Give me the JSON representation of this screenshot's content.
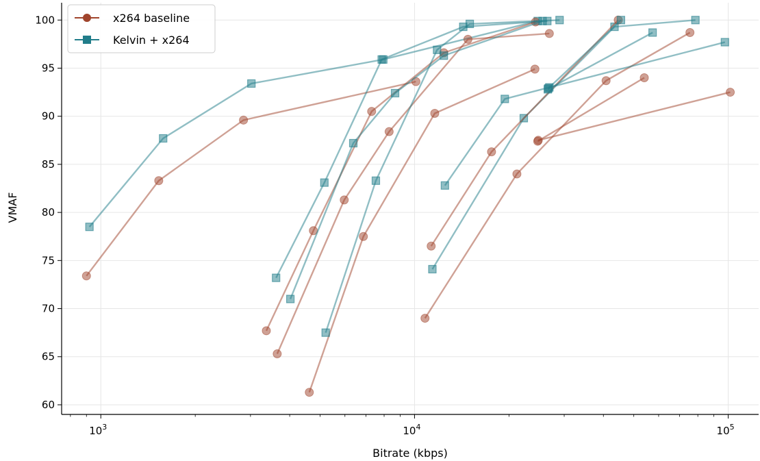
{
  "chart_data": {
    "type": "line",
    "xscale": "log",
    "xlabel": "Bitrate (kbps)",
    "ylabel": "VMAF",
    "xlim": [
      750,
      125000
    ],
    "ylim": [
      59,
      101.8
    ],
    "x_ticks": [
      {
        "value": 1000,
        "base": "10",
        "exp": "3"
      },
      {
        "value": 10000,
        "base": "10",
        "exp": "4"
      },
      {
        "value": 100000,
        "base": "10",
        "exp": "5"
      }
    ],
    "y_ticks": [
      60,
      65,
      70,
      75,
      80,
      85,
      90,
      95,
      100
    ],
    "grid": true,
    "legend": {
      "position": "top-left",
      "entries": [
        {
          "label": "x264 baseline",
          "color": "#a0442c",
          "marker": "circle"
        },
        {
          "label": "Kelvin + x264",
          "color": "#217d8a",
          "marker": "square"
        }
      ]
    },
    "colors": {
      "baseline": "#a0442c",
      "kelvin": "#217d8a"
    },
    "groups": [
      {
        "baseline": [
          [
            900,
            73.4
          ],
          [
            1530,
            83.3
          ],
          [
            2850,
            89.6
          ],
          [
            10100,
            93.6
          ]
        ],
        "kelvin": [
          [
            920,
            78.5
          ],
          [
            1580,
            87.7
          ],
          [
            3020,
            93.4
          ],
          [
            7950,
            95.9
          ],
          [
            24700,
            99.9
          ]
        ]
      },
      {
        "baseline": [
          [
            3370,
            67.7
          ],
          [
            4760,
            78.1
          ],
          [
            7300,
            90.5
          ],
          [
            12400,
            96.6
          ],
          [
            24300,
            99.8
          ]
        ],
        "kelvin": [
          [
            3620,
            73.2
          ],
          [
            5160,
            83.1
          ],
          [
            7860,
            95.9
          ],
          [
            14300,
            99.3
          ],
          [
            26500,
            99.9
          ]
        ]
      },
      {
        "baseline": [
          [
            3650,
            65.3
          ],
          [
            5970,
            81.3
          ],
          [
            8300,
            88.4
          ],
          [
            14800,
            98.0
          ],
          [
            26900,
            98.6
          ]
        ],
        "kelvin": [
          [
            4020,
            71.0
          ],
          [
            6380,
            87.2
          ],
          [
            8670,
            92.4
          ],
          [
            12400,
            96.3
          ],
          [
            25600,
            99.9
          ]
        ]
      },
      {
        "baseline": [
          [
            4620,
            61.3
          ],
          [
            6870,
            77.5
          ],
          [
            11600,
            90.3
          ],
          [
            24200,
            94.9
          ]
        ],
        "kelvin": [
          [
            5210,
            67.5
          ],
          [
            7530,
            83.3
          ],
          [
            11800,
            96.9
          ],
          [
            15000,
            99.6
          ],
          [
            29000,
            100.0
          ]
        ]
      },
      {
        "baseline": [
          [
            10800,
            69.0
          ],
          [
            21200,
            84.0
          ],
          [
            40800,
            93.7
          ],
          [
            75500,
            98.7
          ]
        ],
        "kelvin": [
          [
            11400,
            74.1
          ],
          [
            22300,
            89.8
          ],
          [
            43400,
            99.3
          ],
          [
            78600,
            100.0
          ]
        ]
      },
      {
        "baseline": [
          [
            11300,
            76.5
          ],
          [
            17600,
            86.3
          ],
          [
            44600,
            100.0
          ]
        ],
        "kelvin": [
          [
            12500,
            82.8
          ],
          [
            19400,
            91.8
          ],
          [
            26900,
            93.0
          ],
          [
            97600,
            97.7
          ]
        ]
      },
      {
        "baseline": [
          [
            24800,
            87.5
          ],
          [
            101500,
            92.5
          ]
        ],
        "kelvin": [
          [
            26700,
            92.9
          ],
          [
            45500,
            100.0
          ]
        ]
      },
      {
        "baseline": [
          [
            24700,
            87.4
          ],
          [
            54000,
            94.0
          ]
        ],
        "kelvin": [
          [
            26600,
            92.8
          ],
          [
            57400,
            98.7
          ]
        ]
      }
    ]
  }
}
